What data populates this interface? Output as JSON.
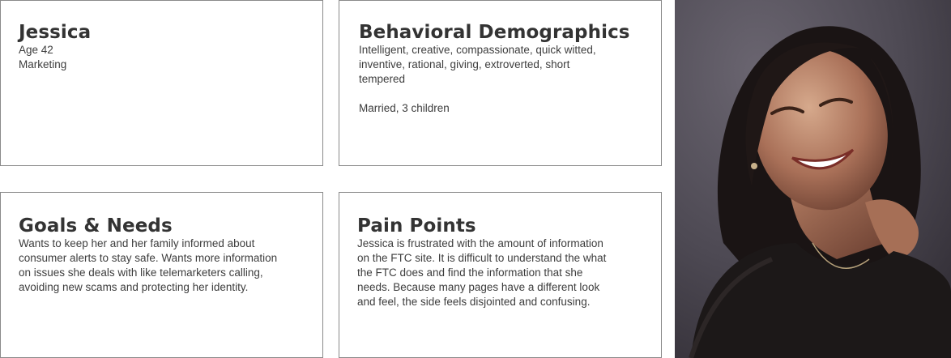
{
  "profile": {
    "name": "Jessica",
    "age": "Age 42",
    "occupation": "Marketing"
  },
  "behavioral": {
    "title": "Behavioral Demographics",
    "traits_lines": [
      "Intelligent, creative, compassionate, quick witted,",
      "inventive, rational, giving, extroverted, short",
      "tempered"
    ],
    "family": "Married, 3 children"
  },
  "goals": {
    "title": "Goals & Needs",
    "lines": [
      "Wants to keep her and her family informed about",
      "consumer alerts to stay safe. Wants more information",
      "on issues she deals with like telemarketers calling,",
      "avoiding new scams and protecting her identity."
    ]
  },
  "pain_points": {
    "title": "Pain Points",
    "lines": [
      "Jessica is frustrated with the amount of information",
      "on the FTC site. It is difficult to understand the what",
      "the FTC does and find the information that she",
      "needs. Because many pages have a different look",
      "and feel, the side feels disjointed and confusing."
    ]
  },
  "photo": {
    "icon": "persona-photo",
    "background_color": "#4c4852"
  }
}
